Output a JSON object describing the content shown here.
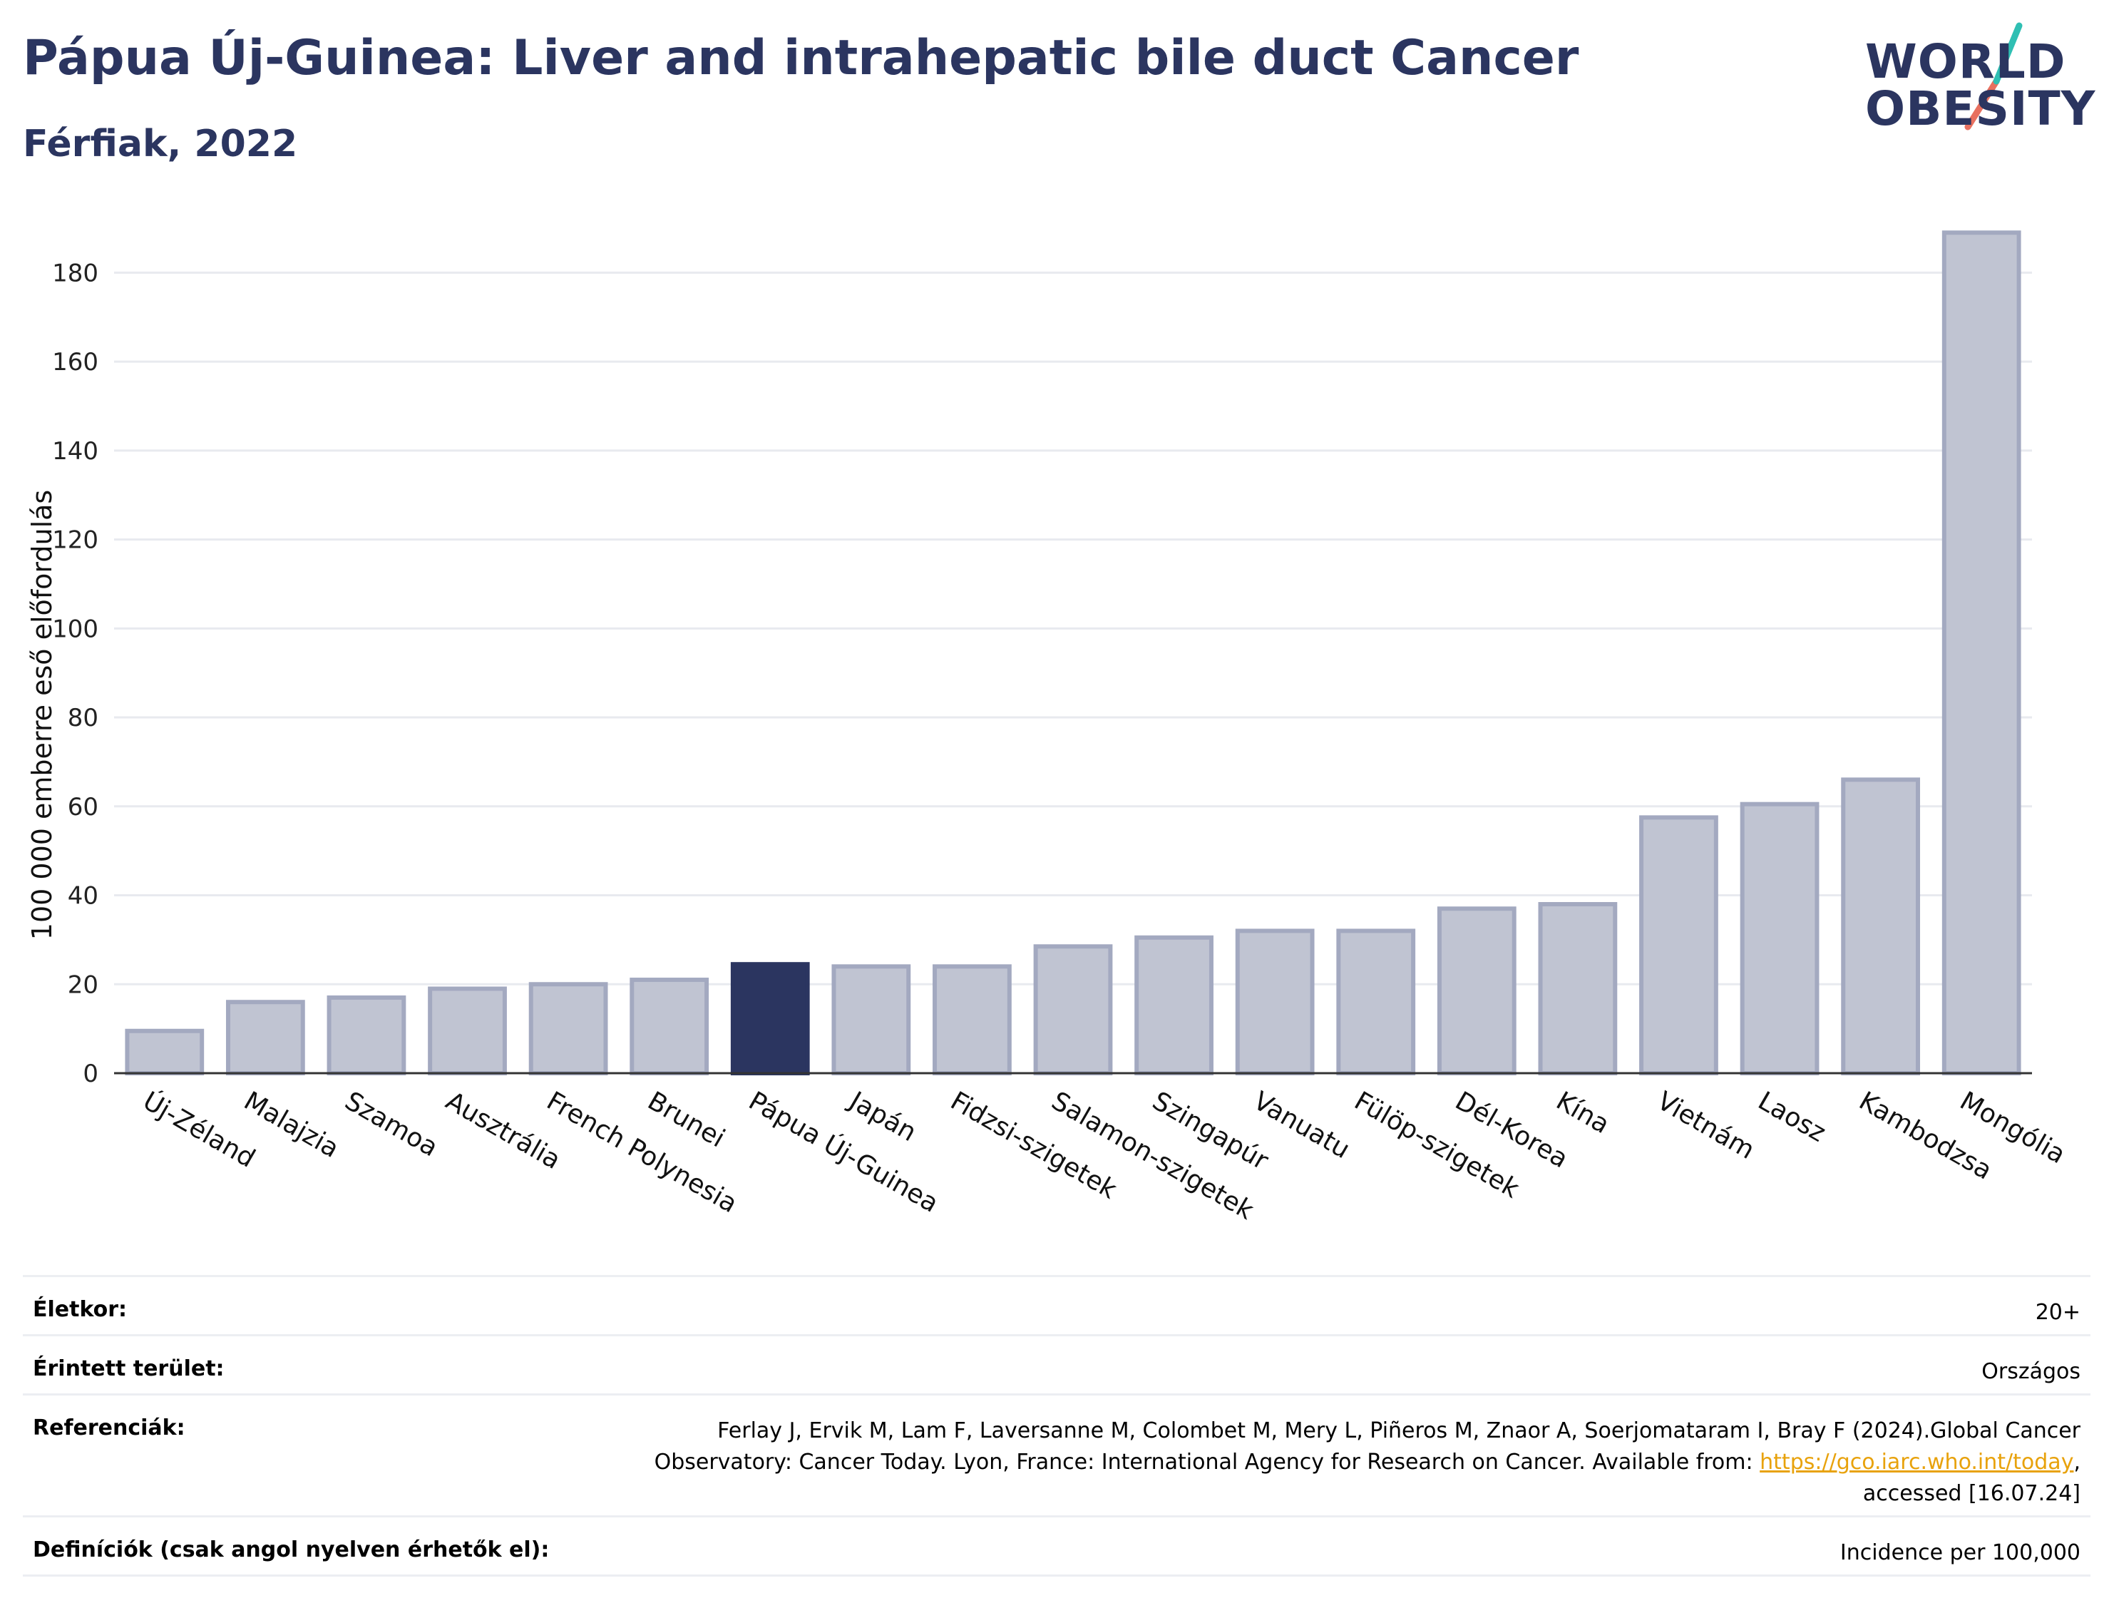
{
  "header": {
    "title": "Pápua Új-Guinea: Liver and intrahepatic bile duct Cancer",
    "subtitle": "Férfiak, 2022"
  },
  "logo": {
    "line1": "WORLD",
    "line2": "OBESITY",
    "colors": {
      "text": "#2b3560",
      "slash_teal": "#2fbfb3",
      "slash_coral": "#e8705f"
    }
  },
  "chart_data": {
    "type": "bar",
    "title": "Pápua Új-Guinea: Liver and intrahepatic bile duct Cancer",
    "subtitle": "Férfiak, 2022",
    "xlabel": "",
    "ylabel": "100 000 emberre eső előfordulás",
    "ylim": [
      0,
      190
    ],
    "yticks": [
      0,
      20,
      40,
      60,
      80,
      100,
      120,
      140,
      160,
      180
    ],
    "grid": true,
    "categories": [
      "Új-Zéland",
      "Malajzia",
      "Szamoa",
      "Ausztrália",
      "French Polynesia",
      "Brunei",
      "Pápua Új-Guinea",
      "Japán",
      "Fidzsi-szigetek",
      "Salamon-szigetek",
      "Szingapúr",
      "Vanuatu",
      "Fülöp-szigetek",
      "Dél-Korea",
      "Kína",
      "Vietnám",
      "Laosz",
      "Kambodzsa",
      "Mongólia"
    ],
    "values": [
      9.5,
      16,
      17,
      19,
      20,
      21,
      24.5,
      24,
      24,
      28.5,
      30.5,
      32,
      32,
      37,
      38,
      57.5,
      60.5,
      66,
      189
    ],
    "highlight": "Pápua Új-Guinea",
    "colors": {
      "bar": "#c0c4d2",
      "bar_border": "#a3a9c0",
      "highlight": "#2b3560",
      "grid": "#e8eaef",
      "axis": "#333333"
    }
  },
  "meta": {
    "age_label": "Életkor:",
    "age_value": "20+",
    "area_label": "Érintett terület:",
    "area_value": "Országos",
    "ref_label": "Referenciák:",
    "ref_line1": "Ferlay J, Ervik M, Lam F, Laversanne M, Colombet M, Mery L, Piñeros M, Znaor A, Soerjomataram I, Bray F (2024).Global Cancer",
    "ref_line2_pre": "Observatory: Cancer Today. Lyon, France: International Agency for Research on Cancer. Available from: ",
    "ref_link": "https://gco.iarc.who.int/today",
    "ref_line2_post": ",",
    "ref_line3": "accessed [16.07.24]",
    "def_label": "Definíciók (csak angol nyelven érhetők el):",
    "def_value": "Incidence per 100,000"
  }
}
